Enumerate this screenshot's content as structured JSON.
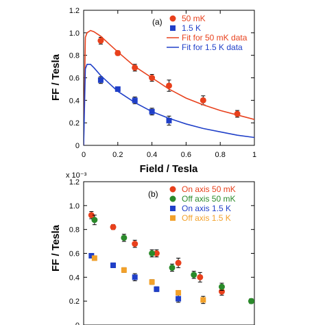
{
  "colors": {
    "red": "#e8401c",
    "blue": "#1f3fc8",
    "green": "#2a8a2a",
    "orange": "#f2a12a",
    "fit_red": "#e8401c",
    "fit_blue": "#1f3fc8"
  },
  "chart_data": [
    {
      "type": "scatter",
      "panel_label": "(a)",
      "xlabel": "Field / Tesla",
      "ylabel": "FF / Tesla",
      "xlim": [
        0,
        1
      ],
      "ylim": [
        0,
        1.2
      ],
      "x_ticks": [
        "0",
        "0.2",
        "0.4",
        "0.6",
        "0.8",
        "1"
      ],
      "y_ticks": [
        "0",
        "0.2",
        "0.4",
        "0.6",
        "0.8",
        "1.0",
        "1.2"
      ],
      "legend_position": "top-right",
      "series": [
        {
          "name": "50 mK",
          "marker": "circle",
          "color": "#e8401c",
          "x": [
            0.1,
            0.2,
            0.3,
            0.4,
            0.5,
            0.7,
            0.9
          ],
          "y": [
            0.93,
            0.82,
            0.69,
            0.6,
            0.53,
            0.4,
            0.28
          ],
          "err": [
            0.03,
            0.02,
            0.03,
            0.03,
            0.05,
            0.04,
            0.03
          ]
        },
        {
          "name": "1.5 K",
          "marker": "square",
          "color": "#1f3fc8",
          "x": [
            0.1,
            0.2,
            0.3,
            0.4,
            0.5
          ],
          "y": [
            0.58,
            0.5,
            0.4,
            0.3,
            0.22
          ],
          "err": [
            0.03,
            0.02,
            0.03,
            0.03,
            0.04
          ]
        },
        {
          "name": "Fit for 50 mK data",
          "line": true,
          "color": "#e8401c",
          "x": [
            0.0,
            0.01,
            0.02,
            0.04,
            0.06,
            0.1,
            0.15,
            0.2,
            0.3,
            0.4,
            0.5,
            0.6,
            0.7,
            0.8,
            0.9,
            1.0
          ],
          "y": [
            0.0,
            0.96,
            1.0,
            1.02,
            1.01,
            0.97,
            0.9,
            0.83,
            0.7,
            0.6,
            0.5,
            0.42,
            0.36,
            0.31,
            0.27,
            0.23
          ]
        },
        {
          "name": "Fit for 1.5 K data",
          "line": true,
          "color": "#1f3fc8",
          "x": [
            0.0,
            0.01,
            0.02,
            0.04,
            0.06,
            0.1,
            0.15,
            0.2,
            0.3,
            0.4,
            0.5,
            0.6,
            0.7,
            0.8,
            0.9,
            1.0
          ],
          "y": [
            0.0,
            0.68,
            0.72,
            0.72,
            0.69,
            0.62,
            0.55,
            0.48,
            0.38,
            0.3,
            0.24,
            0.19,
            0.15,
            0.12,
            0.09,
            0.07
          ]
        }
      ]
    },
    {
      "type": "scatter",
      "panel_label": "(b)",
      "xlabel": "",
      "ylabel": "FF / Tesla",
      "x_multiplier": "x 10⁻³",
      "xlim": [
        0.0036,
        0.0146
      ],
      "ylim": [
        0,
        1.2
      ],
      "y_ticks": [
        "0",
        "0.2",
        "0.4",
        "0.6",
        "0.8",
        "1.0",
        "1.2"
      ],
      "legend_position": "top-right",
      "series": [
        {
          "name": "On axis 50 mK",
          "marker": "circle",
          "color": "#e8401c",
          "x": [
            0.0041,
            0.0055,
            0.0069,
            0.0083,
            0.0097,
            0.0111,
            0.0125
          ],
          "y": [
            0.92,
            0.82,
            0.68,
            0.6,
            0.52,
            0.4,
            0.28
          ],
          "err": [
            0.03,
            0.02,
            0.03,
            0.03,
            0.04,
            0.04,
            0.03
          ]
        },
        {
          "name": "Off axis 50 mK",
          "marker": "circle",
          "color": "#2a8a2a",
          "x": [
            0.0043,
            0.0062,
            0.008,
            0.0093,
            0.0107,
            0.0125,
            0.0144
          ],
          "y": [
            0.88,
            0.73,
            0.6,
            0.48,
            0.42,
            0.32,
            0.2
          ],
          "err": [
            0.04,
            0.03,
            0.03,
            0.03,
            0.03,
            0.03,
            0.02
          ]
        },
        {
          "name": "On axis 1.5 K",
          "marker": "square",
          "color": "#1f3fc8",
          "x": [
            0.0041,
            0.0055,
            0.0069,
            0.0083,
            0.0097
          ],
          "y": [
            0.58,
            0.5,
            0.4,
            0.3,
            0.22
          ],
          "err": [
            0.02,
            0.02,
            0.03,
            0.02,
            0.03
          ]
        },
        {
          "name": "Off axis 1.5 K",
          "marker": "square",
          "color": "#f2a12a",
          "x": [
            0.0043,
            0.0062,
            0.008,
            0.0097,
            0.0113
          ],
          "y": [
            0.56,
            0.46,
            0.36,
            0.27,
            0.21
          ],
          "err": [
            0.02,
            0.02,
            0.02,
            0.02,
            0.03
          ]
        }
      ]
    }
  ]
}
